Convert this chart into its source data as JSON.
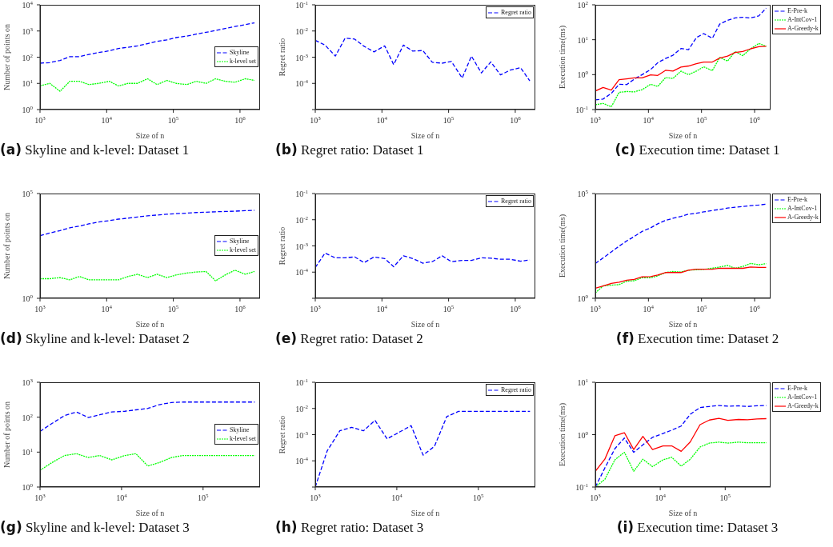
{
  "chart_data": [
    {
      "type": "line",
      "title": "(a) Skyline and k-level: Dataset 1",
      "xlabel": "Size of n",
      "ylabel": "Number of points on",
      "log": "xy",
      "legend": "right",
      "x": [
        1000,
        1400,
        2000,
        2800,
        3900,
        5400,
        7600,
        11000,
        15000,
        21000,
        29000,
        41000,
        57000,
        80000,
        110000,
        160000,
        220000,
        310000,
        430000,
        600000,
        840000,
        1200000,
        1650000
      ],
      "xlim": [
        1000,
        2000000
      ],
      "xticks": [
        {
          "value": 1000,
          "label": "10$^{3}$"
        },
        {
          "value": 10000,
          "label": "10$^{4}$"
        },
        {
          "value": 100000,
          "label": "10$^{5}$"
        },
        {
          "value": 1000000,
          "label": "10$^{6}$"
        }
      ],
      "ylim": [
        1,
        10000
      ],
      "yticks": [
        {
          "value": 1,
          "label": "10$^{0}$"
        },
        {
          "value": 10,
          "label": "10$^{1}$"
        },
        {
          "value": 100,
          "label": "10$^{2}$"
        },
        {
          "value": 1000,
          "label": "10$^{3}$"
        },
        {
          "value": 10000,
          "label": "10$^{4}$"
        }
      ],
      "series": [
        {
          "name": "Skyline",
          "color": "#0000ff",
          "line_style": "dashed",
          "values": [
            59,
            62,
            75,
            105,
            105,
            127,
            150,
            175,
            215,
            240,
            270,
            330,
            400,
            460,
            560,
            640,
            760,
            890,
            1050,
            1240,
            1480,
            1740,
            2050
          ]
        },
        {
          "name": "k-level set",
          "color": "#00ff00",
          "line_style": "dotted",
          "values": [
            8,
            10,
            5,
            12,
            12,
            9,
            10,
            12,
            8,
            10,
            10,
            15,
            9,
            13,
            10,
            9,
            12,
            10,
            15,
            12,
            11,
            15,
            13
          ]
        }
      ]
    },
    {
      "type": "line",
      "title": "(b) Regret ratio: Dataset 1",
      "xlabel": "Size of n",
      "ylabel": "Regret ratio",
      "log": "xy",
      "legend": "top right",
      "x": [
        1000,
        1400,
        2000,
        2800,
        3900,
        5400,
        7600,
        11000,
        15000,
        21000,
        29000,
        41000,
        57000,
        80000,
        110000,
        160000,
        220000,
        310000,
        430000,
        600000,
        840000,
        1200000,
        1650000
      ],
      "xlim": [
        1000,
        2000000
      ],
      "xticks": [
        {
          "value": 1000,
          "label": "10$^{3}$"
        },
        {
          "value": 10000,
          "label": "10$^{4}$"
        },
        {
          "value": 100000,
          "label": "10$^{5}$"
        },
        {
          "value": 1000000,
          "label": "10$^{6}$"
        }
      ],
      "ylim": [
        1e-05,
        0.1
      ],
      "yticks": [
        {
          "value": 1e-05,
          "label": null
        },
        {
          "value": 0.0001,
          "label": "10$^{-4}$"
        },
        {
          "value": 0.001,
          "label": "10$^{-3}$"
        },
        {
          "value": 0.01,
          "label": "10$^{-2}$"
        },
        {
          "value": 0.1,
          "label": "10$^{-1}$"
        }
      ],
      "series": [
        {
          "name": "Regret ratio",
          "color": "#0000ff",
          "line_style": "dashed",
          "values": [
            0.0044,
            0.0029,
            0.0011,
            0.0053,
            0.0049,
            0.0026,
            0.0016,
            0.0027,
            0.00052,
            0.0029,
            0.0017,
            0.0018,
            0.00064,
            0.00059,
            0.00069,
            0.00016,
            0.0011,
            0.00025,
            0.00066,
            0.00021,
            0.00032,
            0.0004,
            0.000125
          ]
        }
      ]
    },
    {
      "type": "line",
      "title": "(c) Execution time: Dataset 1",
      "xlabel": "Size of n",
      "ylabel": "Execution time(ms)",
      "log": "xy",
      "legend": "top right",
      "x": [
        1000,
        1400,
        2000,
        2800,
        3900,
        5400,
        7600,
        11000,
        15000,
        21000,
        29000,
        41000,
        57000,
        80000,
        110000,
        160000,
        220000,
        310000,
        430000,
        600000,
        840000,
        1200000,
        1650000
      ],
      "xlim": [
        1000,
        2000000
      ],
      "xticks": [
        {
          "value": 1000,
          "label": "10$^{3}$"
        },
        {
          "value": 10000,
          "label": "10$^{4}$"
        },
        {
          "value": 100000,
          "label": "10$^{5}$"
        },
        {
          "value": 1000000,
          "label": "10$^{6}$"
        }
      ],
      "ylim": [
        0.1,
        100
      ],
      "yticks": [
        {
          "value": 0.1,
          "label": "10$^{-1}$"
        },
        {
          "value": 1,
          "label": "10$^{0}$"
        },
        {
          "value": 10,
          "label": "10$^{1}$"
        },
        {
          "value": 100,
          "label": "10$^{2}$"
        }
      ],
      "series": [
        {
          "name": "E-Pre-k",
          "color": "#0000ff",
          "line_style": "dashed",
          "values": [
            0.19,
            0.2,
            0.29,
            0.53,
            0.52,
            0.74,
            1.0,
            1.4,
            2.2,
            2.9,
            3.6,
            5.6,
            5.2,
            11.5,
            15,
            11,
            28,
            36,
            42,
            44,
            42,
            48,
            80
          ]
        },
        {
          "name": "A-IntCov-1",
          "color": "#00ff00",
          "line_style": "dotted",
          "values": [
            0.137,
            0.15,
            0.12,
            0.31,
            0.33,
            0.32,
            0.37,
            0.53,
            0.46,
            0.82,
            0.78,
            1.26,
            1.0,
            1.26,
            1.68,
            1.3,
            3.1,
            2.45,
            4.6,
            3.5,
            5.5,
            7.8,
            6.5
          ]
        },
        {
          "name": "A-Greedy-k",
          "color": "#ff0000",
          "line_style": "solid",
          "values": [
            0.34,
            0.43,
            0.36,
            0.72,
            0.76,
            0.81,
            0.81,
            0.98,
            0.95,
            1.33,
            1.26,
            1.65,
            1.77,
            2.05,
            2.3,
            2.3,
            2.97,
            3.4,
            4.3,
            4.6,
            5.5,
            6.3,
            6.5
          ]
        }
      ]
    },
    {
      "type": "line",
      "title": "(d) Skyline and k-level: Dataset 2",
      "xlabel": "Size of n",
      "ylabel": "Number of points on",
      "log": "xy",
      "legend": "right",
      "x": [
        1000,
        1400,
        2000,
        2800,
        3900,
        5400,
        7600,
        11000,
        15000,
        21000,
        29000,
        41000,
        57000,
        80000,
        110000,
        160000,
        220000,
        310000,
        430000,
        600000,
        840000,
        1200000,
        1650000
      ],
      "xlim": [
        1000,
        2000000
      ],
      "xticks": [
        {
          "value": 1000,
          "label": "10$^{3}$"
        },
        {
          "value": 10000,
          "label": "10$^{4}$"
        },
        {
          "value": 100000,
          "label": "10$^{5}$"
        },
        {
          "value": 1000000,
          "label": "10$^{6}$"
        }
      ],
      "ylim": [
        1,
        100000
      ],
      "yticks": [
        {
          "value": 1,
          "label": "10$^{0}$"
        },
        {
          "value": 100000,
          "label": "10$^{5}$"
        }
      ],
      "series": [
        {
          "name": "Skyline",
          "color": "#0000ff",
          "line_style": "dashed",
          "values": [
            970,
            1300,
            1700,
            2300,
            2800,
            3550,
            4400,
            5100,
            6000,
            6700,
            7600,
            8600,
            9400,
            10300,
            11000,
            11600,
            12400,
            12800,
            13500,
            13900,
            14400,
            15200,
            15800
          ]
        },
        {
          "name": "k-level set",
          "color": "#00ff00",
          "line_style": "dotted",
          "values": [
            8.6,
            8.6,
            9.7,
            7.6,
            11,
            7.6,
            7.6,
            7.6,
            7.6,
            11,
            14,
            9.7,
            14,
            9.7,
            13,
            16,
            18,
            19,
            6.8,
            13,
            22,
            14,
            19
          ]
        }
      ]
    },
    {
      "type": "line",
      "title": "(e) Regret ratio: Dataset 2",
      "xlabel": "Size of n",
      "ylabel": "Regret ratio",
      "log": "xy",
      "legend": "top right",
      "x": [
        1000,
        1400,
        2000,
        2800,
        3900,
        5400,
        7600,
        11000,
        15000,
        21000,
        29000,
        41000,
        57000,
        80000,
        110000,
        160000,
        220000,
        310000,
        430000,
        600000,
        840000,
        1200000,
        1650000
      ],
      "xlim": [
        1000,
        2000000
      ],
      "xticks": [
        {
          "value": 1000,
          "label": "10$^{3}$"
        },
        {
          "value": 10000,
          "label": "10$^{4}$"
        },
        {
          "value": 100000,
          "label": "10$^{5}$"
        },
        {
          "value": 1000000,
          "label": "10$^{6}$"
        }
      ],
      "ylim": [
        1e-05,
        0.1
      ],
      "yticks": [
        {
          "value": 1e-05,
          "label": null
        },
        {
          "value": 0.0001,
          "label": "10$^{-4}$"
        },
        {
          "value": 0.001,
          "label": "10$^{-3}$"
        },
        {
          "value": 0.01,
          "label": "10$^{-2}$"
        },
        {
          "value": 0.1,
          "label": "10$^{-1}$"
        }
      ],
      "series": [
        {
          "name": "Regret ratio",
          "color": "#0000ff",
          "line_style": "dashed",
          "values": [
            0.00015,
            0.00053,
            0.00035,
            0.00035,
            0.00038,
            0.00023,
            0.00038,
            0.00033,
            0.00016,
            0.00042,
            0.00033,
            0.00022,
            0.00025,
            0.00042,
            0.00025,
            0.00028,
            0.00028,
            0.00035,
            0.00034,
            0.00031,
            0.00031,
            0.00026,
            0.00029
          ]
        }
      ]
    },
    {
      "type": "line",
      "title": "(f) Execution time: Dataset 2",
      "xlabel": "Size of n",
      "ylabel": "Execution time(ms)",
      "log": "xy",
      "legend": "top right",
      "x": [
        1000,
        1400,
        2000,
        2800,
        3900,
        5400,
        7600,
        11000,
        15000,
        21000,
        29000,
        41000,
        57000,
        80000,
        110000,
        160000,
        220000,
        310000,
        430000,
        600000,
        840000,
        1200000,
        1650000
      ],
      "xlim": [
        1000,
        2000000
      ],
      "xticks": [
        {
          "value": 1000,
          "label": "10$^{3}$"
        },
        {
          "value": 10000,
          "label": "10$^{4}$"
        },
        {
          "value": 100000,
          "label": "10$^{5}$"
        },
        {
          "value": 1000000,
          "label": "10$^{6}$"
        }
      ],
      "ylim": [
        1,
        100000
      ],
      "yticks": [
        {
          "value": 1,
          "label": "10$^{0}$"
        },
        {
          "value": 100000,
          "label": "10$^{5}$"
        }
      ],
      "series": [
        {
          "name": "E-Pre-k",
          "color": "#0000ff",
          "line_style": "dashed",
          "values": [
            46,
            84,
            163,
            306,
            545,
            890,
            1560,
            2300,
            3600,
            5200,
            6600,
            8100,
            10400,
            11400,
            13300,
            15500,
            17400,
            20300,
            22200,
            24200,
            26400,
            28200,
            31000
          ]
        },
        {
          "name": "A-IntCov-1",
          "color": "#00ff00",
          "line_style": "dotted",
          "values": [
            1.8,
            3.9,
            4.2,
            4.5,
            6.5,
            6.9,
            9.6,
            9.6,
            11.8,
            17,
            19,
            18,
            22,
            23,
            24,
            27.5,
            31,
            37,
            27,
            33,
            46,
            40,
            45
          ]
        },
        {
          "name": "A-Greedy-k",
          "color": "#ff0000",
          "line_style": "solid",
          "values": [
            3.0,
            3.9,
            5.1,
            5.9,
            7.3,
            8.0,
            10.5,
            10.8,
            12.9,
            17,
            17,
            17,
            22,
            24.5,
            24.5,
            24.5,
            27.5,
            27,
            27.5,
            27,
            31,
            30,
            30
          ]
        }
      ]
    },
    {
      "type": "line",
      "title": "(g) Skyline and k-level: Dataset 3",
      "xlabel": "Size of n",
      "ylabel": "Number of points on",
      "log": "xy",
      "legend": "right",
      "x": [
        1000,
        1400,
        2000,
        2800,
        3900,
        5400,
        7600,
        11000,
        15000,
        21000,
        29000,
        41000,
        57000,
        80000,
        110000,
        160000,
        220000,
        310000,
        430000
      ],
      "xlim": [
        1000,
        500000
      ],
      "xticks": [
        {
          "value": 1000,
          "label": "10$^{3}$"
        },
        {
          "value": 10000,
          "label": "10$^{4}$"
        },
        {
          "value": 100000,
          "label": "10$^{5}$"
        }
      ],
      "ylim": [
        1,
        1000
      ],
      "yticks": [
        {
          "value": 1,
          "label": "10$^{0}$"
        },
        {
          "value": 10,
          "label": "10$^{1}$"
        },
        {
          "value": 100,
          "label": "10$^{2}$"
        },
        {
          "value": 1000,
          "label": "10$^{3}$"
        }
      ],
      "series": [
        {
          "name": "Skyline",
          "color": "#0000ff",
          "line_style": "dashed",
          "values": [
            39,
            66,
            111,
            141,
            98,
            117,
            141,
            148,
            162,
            178,
            228,
            263,
            271,
            271,
            271,
            271,
            271,
            271,
            271
          ]
        },
        {
          "name": "k-level set",
          "color": "#00ff00",
          "line_style": "dotted",
          "values": [
            3,
            5,
            8,
            9,
            7,
            8,
            6,
            8,
            9,
            4,
            5,
            7,
            8,
            8,
            8,
            8,
            8,
            8,
            8
          ]
        }
      ]
    },
    {
      "type": "line",
      "title": "(h) Regret ratio: Dataset 3",
      "xlabel": "Size of n",
      "ylabel": "Regret ratio",
      "log": "xy",
      "legend": "top right",
      "x": [
        1000,
        1400,
        2000,
        2800,
        3900,
        5400,
        7600,
        11000,
        15000,
        21000,
        29000,
        41000,
        57000,
        80000,
        110000,
        160000,
        220000,
        310000,
        430000
      ],
      "xlim": [
        1000,
        500000
      ],
      "xticks": [
        {
          "value": 1000,
          "label": "10$^{3}$"
        },
        {
          "value": 10000,
          "label": "10$^{4}$"
        },
        {
          "value": 100000,
          "label": "10$^{5}$"
        }
      ],
      "ylim": [
        1e-05,
        0.1
      ],
      "yticks": [
        {
          "value": 1e-05,
          "label": null
        },
        {
          "value": 0.0001,
          "label": "10$^{-4}$"
        },
        {
          "value": 0.001,
          "label": "10$^{-3}$"
        },
        {
          "value": 0.01,
          "label": "10$^{-2}$"
        },
        {
          "value": 0.1,
          "label": "10$^{-1}$"
        }
      ],
      "series": [
        {
          "name": "Regret ratio",
          "color": "#0000ff",
          "line_style": "dashed",
          "values": [
            1e-05,
            0.00024,
            0.0014,
            0.0019,
            0.0014,
            0.0035,
            0.00069,
            0.0013,
            0.0022,
            0.000165,
            0.00036,
            0.0049,
            0.0077,
            0.0077,
            0.0077,
            0.0077,
            0.0077,
            0.0077,
            0.0077
          ]
        }
      ]
    },
    {
      "type": "line",
      "title": "(i) Execution time: Dataset 3",
      "xlabel": "Size of n",
      "ylabel": "Execution time(ms)",
      "log": "xy",
      "legend": "top right",
      "x": [
        1000,
        1400,
        2000,
        2800,
        3900,
        5400,
        7600,
        11000,
        15000,
        21000,
        29000,
        41000,
        57000,
        80000,
        110000,
        160000,
        220000,
        310000,
        430000
      ],
      "xlim": [
        1000,
        500000
      ],
      "xticks": [
        {
          "value": 1000,
          "label": "10$^{3}$"
        },
        {
          "value": 10000,
          "label": "10$^{4}$"
        },
        {
          "value": 100000,
          "label": "10$^{5}$"
        }
      ],
      "ylim": [
        0.1,
        10
      ],
      "yticks": [
        {
          "value": 0.1,
          "label": "10$^{-1}$"
        },
        {
          "value": 1,
          "label": "10$^{0}$"
        },
        {
          "value": 10,
          "label": "10$^{1}$"
        }
      ],
      "series": [
        {
          "name": "E-Pre-k",
          "color": "#0000ff",
          "line_style": "dashed",
          "values": [
            0.1,
            0.23,
            0.54,
            0.86,
            0.46,
            0.64,
            0.89,
            1.05,
            1.22,
            1.46,
            2.45,
            3.3,
            3.45,
            3.6,
            3.5,
            3.55,
            3.45,
            3.55,
            3.6
          ]
        },
        {
          "name": "A-IntCov-1",
          "color": "#00ff00",
          "line_style": "dotted",
          "values": [
            0.1,
            0.14,
            0.33,
            0.46,
            0.2,
            0.34,
            0.245,
            0.33,
            0.37,
            0.25,
            0.34,
            0.58,
            0.69,
            0.72,
            0.69,
            0.72,
            0.7,
            0.7,
            0.7
          ]
        },
        {
          "name": "A-Greedy-k",
          "color": "#ff0000",
          "line_style": "solid",
          "values": [
            0.2,
            0.34,
            0.95,
            1.09,
            0.52,
            0.93,
            0.52,
            0.61,
            0.61,
            0.48,
            0.73,
            1.55,
            1.9,
            2.05,
            1.88,
            1.95,
            1.93,
            2.0,
            2.02
          ]
        }
      ]
    }
  ]
}
